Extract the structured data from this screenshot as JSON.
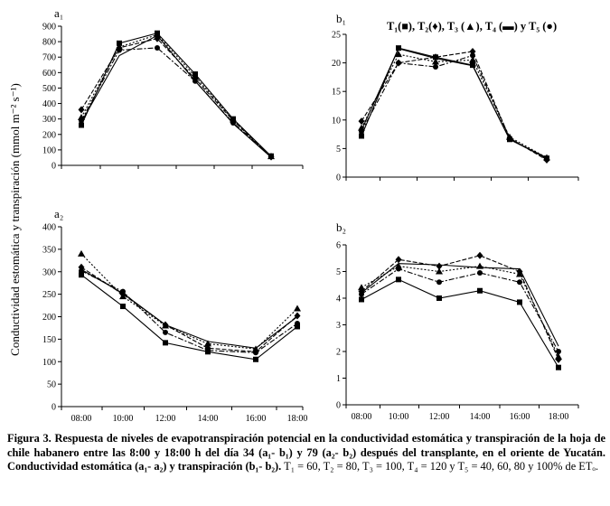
{
  "figure": {
    "y_axis_title": "Conductividad estomática y transpiración (mmol m⁻² s⁻¹)",
    "legend": "T₁(■), T₂(♦), T₃ (▲), T₄ (▬) y T₅ (●)"
  },
  "chart_data": [
    {
      "id": "a1",
      "panel_label": "a₁",
      "type": "line",
      "categories": [
        "08:00",
        "10:00",
        "12:00",
        "14:00",
        "16:00",
        "18:00"
      ],
      "ylim": [
        0,
        900
      ],
      "yticks": [
        0,
        100,
        200,
        300,
        400,
        500,
        600,
        700,
        800,
        900
      ],
      "show_xticks": false,
      "series": [
        {
          "name": "T1",
          "marker": "square",
          "dash": "",
          "values": [
            260,
            790,
            855,
            590,
            300,
            60
          ]
        },
        {
          "name": "T2",
          "marker": "diamond",
          "dash": "5,2",
          "values": [
            360,
            760,
            820,
            560,
            290,
            55
          ]
        },
        {
          "name": "T3",
          "marker": "triangle",
          "dash": "2,2",
          "values": [
            310,
            765,
            845,
            575,
            295,
            58
          ]
        },
        {
          "name": "T4",
          "marker": "none",
          "dash": "",
          "values": [
            280,
            710,
            840,
            545,
            270,
            52
          ]
        },
        {
          "name": "T5",
          "marker": "circle",
          "dash": "6,2,2,2",
          "values": [
            290,
            745,
            760,
            545,
            275,
            60
          ]
        }
      ]
    },
    {
      "id": "b1",
      "panel_label": "b₁",
      "type": "line",
      "categories": [
        "08:00",
        "10:00",
        "12:00",
        "14:00",
        "16:00",
        "18:00"
      ],
      "ylim": [
        0,
        25
      ],
      "yticks": [
        0,
        5,
        10,
        15,
        20,
        25
      ],
      "show_xticks": false,
      "series": [
        {
          "name": "T1",
          "marker": "square",
          "dash": "",
          "values": [
            7.2,
            22.6,
            21.0,
            19.6,
            6.6,
            3.3
          ]
        },
        {
          "name": "T2",
          "marker": "diamond",
          "dash": "5,2",
          "values": [
            9.8,
            20.0,
            21.0,
            22.0,
            6.8,
            3.0
          ]
        },
        {
          "name": "T3",
          "marker": "triangle",
          "dash": "2,2",
          "values": [
            8.6,
            21.5,
            20.2,
            20.5,
            7.0,
            3.4
          ]
        },
        {
          "name": "T4",
          "marker": "none",
          "dash": "",
          "values": [
            8.2,
            22.5,
            20.8,
            19.5,
            6.6,
            3.4
          ]
        },
        {
          "name": "T5",
          "marker": "circle",
          "dash": "6,2,2,2",
          "values": [
            8.0,
            20.0,
            19.3,
            21.3,
            6.8,
            3.1
          ]
        }
      ]
    },
    {
      "id": "a2",
      "panel_label": "a₂",
      "type": "line",
      "categories": [
        "08:00",
        "10:00",
        "12:00",
        "14:00",
        "16:00",
        "18:00"
      ],
      "ylim": [
        0,
        400
      ],
      "yticks": [
        0,
        50,
        100,
        150,
        200,
        250,
        300,
        350,
        400
      ],
      "show_xticks": true,
      "series": [
        {
          "name": "T1",
          "marker": "square",
          "dash": "",
          "values": [
            293,
            223,
            142,
            122,
            105,
            178
          ]
        },
        {
          "name": "T2",
          "marker": "diamond",
          "dash": "5,2",
          "values": [
            310,
            250,
            182,
            130,
            122,
            202
          ]
        },
        {
          "name": "T3",
          "marker": "triangle",
          "dash": "2,2",
          "values": [
            340,
            245,
            180,
            140,
            128,
            218
          ]
        },
        {
          "name": "T4",
          "marker": "none",
          "dash": "",
          "values": [
            305,
            252,
            182,
            145,
            130,
            200
          ]
        },
        {
          "name": "T5",
          "marker": "circle",
          "dash": "6,2,2,2",
          "values": [
            302,
            256,
            165,
            125,
            120,
            185
          ]
        }
      ]
    },
    {
      "id": "b2",
      "panel_label": "b₂",
      "type": "line",
      "categories": [
        "08:00",
        "10:00",
        "12:00",
        "14:00",
        "16:00",
        "18:00"
      ],
      "ylim": [
        0,
        6
      ],
      "yticks": [
        0,
        1,
        2,
        3,
        4,
        5,
        6
      ],
      "show_xticks": true,
      "series": [
        {
          "name": "T1",
          "marker": "square",
          "dash": "",
          "values": [
            3.95,
            4.7,
            4.0,
            4.28,
            3.85,
            1.4
          ]
        },
        {
          "name": "T2",
          "marker": "diamond",
          "dash": "5,2",
          "values": [
            4.25,
            5.45,
            5.2,
            5.6,
            5.0,
            1.7
          ]
        },
        {
          "name": "T3",
          "marker": "triangle",
          "dash": "2,2",
          "values": [
            4.4,
            5.2,
            5.0,
            5.2,
            4.9,
            1.8
          ]
        },
        {
          "name": "T4",
          "marker": "none",
          "dash": "",
          "values": [
            4.2,
            5.3,
            5.25,
            5.15,
            5.1,
            2.2
          ]
        },
        {
          "name": "T5",
          "marker": "circle",
          "dash": "6,2,2,2",
          "values": [
            4.15,
            5.1,
            4.6,
            4.95,
            4.6,
            2.0
          ]
        }
      ]
    }
  ],
  "caption": {
    "bold": "Figura 3. Respuesta de niveles de evapotranspiración potencial en la conductividad estomática y transpiración de la hoja de chile habanero entre las 8:00 y 18:00 h del día 34 (a₁- b₁) y 79 (a₂- b₂) después del transplante, en el oriente de Yucatán. Conductividad estomática (a₁- a₂) y transpiración (b₁- b₂).",
    "normal": " T₁ = 60, T₂ = 80, T₃ = 100, T₄ = 120 y T₅ = 40, 60, 80 y 100% de ETₒ."
  }
}
